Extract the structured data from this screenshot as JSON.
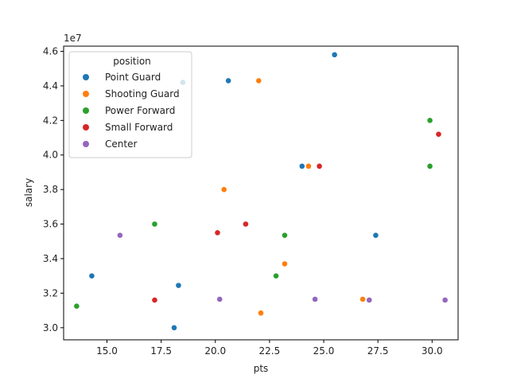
{
  "chart_data": {
    "type": "scatter",
    "xlabel": "pts",
    "ylabel": "salary",
    "y_offset_label": "1e7",
    "xlim": [
      13.0,
      31.2
    ],
    "ylim": [
      2.93,
      4.63
    ],
    "x_ticks": [
      15.0,
      17.5,
      20.0,
      22.5,
      25.0,
      27.5,
      30.0
    ],
    "x_tick_labels": [
      "15.0",
      "17.5",
      "20.0",
      "22.5",
      "25.0",
      "27.5",
      "30.0"
    ],
    "y_ticks": [
      3.0,
      3.2,
      3.4,
      3.6,
      3.8,
      4.0,
      4.2,
      4.4,
      4.6
    ],
    "y_tick_labels": [
      "3.0",
      "3.2",
      "3.4",
      "3.6",
      "3.8",
      "4.0",
      "4.2",
      "4.4",
      "4.6"
    ],
    "grid": false,
    "legend": {
      "title": "position",
      "placement": "upper-left"
    },
    "series": [
      {
        "name": "Point Guard",
        "color": "#1f77b4",
        "points": [
          [
            25.5,
            4.58
          ],
          [
            20.6,
            4.43
          ],
          [
            18.5,
            4.42
          ],
          [
            24.0,
            3.935
          ],
          [
            27.4,
            3.535
          ],
          [
            14.3,
            3.3
          ],
          [
            18.3,
            3.245
          ],
          [
            18.1,
            3.0
          ]
        ]
      },
      {
        "name": "Shooting Guard",
        "color": "#ff7f0e",
        "points": [
          [
            22.0,
            4.43
          ],
          [
            24.3,
            3.935
          ],
          [
            20.4,
            3.8
          ],
          [
            23.2,
            3.37
          ],
          [
            26.8,
            3.165
          ],
          [
            22.1,
            3.085
          ]
        ]
      },
      {
        "name": "Power Forward",
        "color": "#2ca02c",
        "points": [
          [
            29.9,
            4.2
          ],
          [
            29.9,
            3.935
          ],
          [
            17.2,
            3.6
          ],
          [
            23.2,
            3.535
          ],
          [
            22.8,
            3.3
          ],
          [
            13.6,
            3.125
          ]
        ]
      },
      {
        "name": "Small Forward",
        "color": "#d62728",
        "points": [
          [
            30.3,
            4.12
          ],
          [
            24.8,
            3.935
          ],
          [
            21.4,
            3.6
          ],
          [
            20.1,
            3.55
          ],
          [
            17.2,
            3.16
          ]
        ]
      },
      {
        "name": "Center",
        "color": "#9467bd",
        "points": [
          [
            15.6,
            3.535
          ],
          [
            20.2,
            3.165
          ],
          [
            24.6,
            3.165
          ],
          [
            27.1,
            3.16
          ],
          [
            30.6,
            3.16
          ]
        ]
      }
    ]
  }
}
